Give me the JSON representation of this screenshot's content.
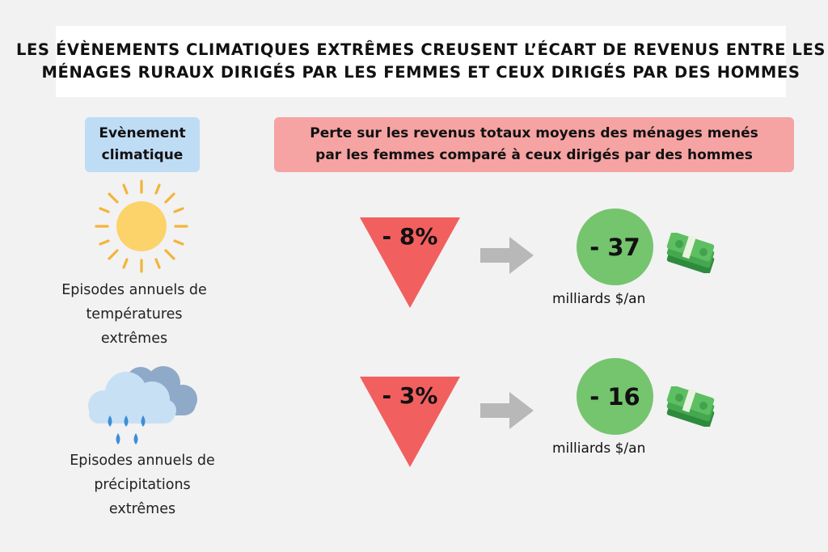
{
  "title": {
    "line1": "Les évènements climatiques extrêmes creusent l’écart de revenus entre les",
    "line2": "ménages ruraux dirigés par les femmes et ceux dirigés par des hommes"
  },
  "headers": {
    "event_line1": "Evènement",
    "event_line2": "climatique",
    "loss_line1": "Perte sur les revenus totaux moyens des ménages menés",
    "loss_line2": "par les femmes comparé à ceux dirigés par des hommes"
  },
  "rows": [
    {
      "icon": "sun-icon",
      "label_line1": "Episodes annuels de",
      "label_line2": "températures",
      "label_line3": "extrêmes",
      "percent": "- 8%",
      "amount": "- 37",
      "unit": "milliards $/an"
    },
    {
      "icon": "rain-cloud-icon",
      "label_line1": "Episodes annuels de",
      "label_line2": "précipitations",
      "label_line3": "extrêmes",
      "percent": "- 3%",
      "amount": "- 16",
      "unit": "milliards $/an"
    }
  ],
  "colors": {
    "background": "#f2f2f2",
    "header_blue": "#bfdcf5",
    "header_red": "#f6a3a3",
    "triangle_red": "#f25f5f",
    "circle_green": "#75c46e",
    "arrow_gray": "#b8b8b8",
    "sun_yellow": "#fcd36b",
    "cloud_blue": "#c8e0f4",
    "rain_blue": "#3d8fd6"
  }
}
